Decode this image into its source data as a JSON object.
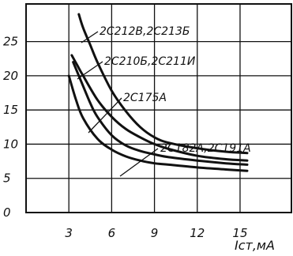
{
  "chart_data": {
    "type": "line",
    "xlabel": "Iст,мA",
    "ylabel": "",
    "x_ticks": [
      3,
      6,
      9,
      12,
      15
    ],
    "y_ticks": [
      0,
      5,
      10,
      15,
      20,
      25
    ],
    "xlim": [
      0,
      18.6
    ],
    "ylim": [
      0,
      30.5
    ],
    "grid": true,
    "series": [
      {
        "name": "2C212B,2C213Б",
        "x": [
          3.7,
          4.0,
          4.5,
          5.0,
          6.0,
          7.0,
          8.0,
          9.0,
          10.0,
          12.0,
          14.0,
          15.5
        ],
        "y": [
          29.0,
          27.0,
          24.5,
          22.0,
          17.8,
          14.8,
          12.5,
          11.0,
          10.2,
          9.4,
          8.9,
          8.7
        ]
      },
      {
        "name": "2C210Б,2C211И",
        "x": [
          3.2,
          3.6,
          4.0,
          5.0,
          6.0,
          7.0,
          8.0,
          9.0,
          10.0,
          12.0,
          14.0,
          15.5
        ],
        "y": [
          23.0,
          21.5,
          20.0,
          16.5,
          14.0,
          12.2,
          11.0,
          10.0,
          9.3,
          8.3,
          7.8,
          7.6
        ]
      },
      {
        "name": "2C175A",
        "x": [
          3.3,
          3.8,
          4.5,
          5.0,
          6.0,
          7.0,
          8.0,
          9.0,
          10.0,
          12.0,
          14.0,
          15.5
        ],
        "y": [
          22.0,
          19.5,
          16.0,
          14.0,
          11.3,
          9.8,
          9.0,
          8.5,
          8.1,
          7.6,
          7.2,
          7.0
        ]
      },
      {
        "name": "2C182A,2C191A",
        "x": [
          3.0,
          3.5,
          4.0,
          5.0,
          6.0,
          7.0,
          8.0,
          9.0,
          10.0,
          12.0,
          14.0,
          15.5
        ],
        "y": [
          20.0,
          16.5,
          13.8,
          10.8,
          9.2,
          8.2,
          7.6,
          7.2,
          7.0,
          6.6,
          6.3,
          6.1
        ]
      }
    ]
  }
}
